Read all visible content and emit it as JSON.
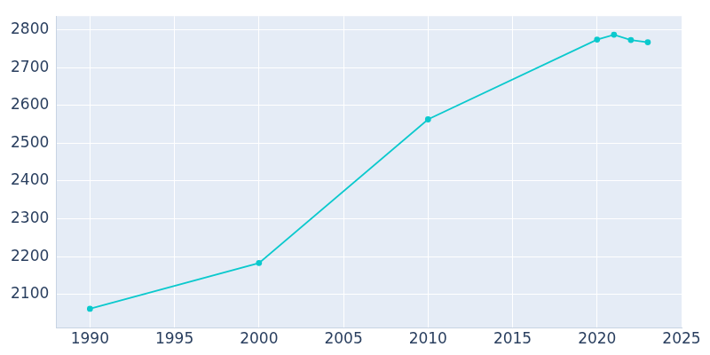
{
  "chart_data": {
    "type": "line",
    "x": [
      1990,
      2000,
      2010,
      2020,
      2021,
      2022,
      2023
    ],
    "values": [
      2062,
      2183,
      2563,
      2774,
      2787,
      2773,
      2767
    ],
    "color": "#0bc9cd",
    "marker": "circle",
    "xlim": [
      1988,
      2025
    ],
    "xticks": [
      1990,
      1995,
      2000,
      2005,
      2010,
      2015,
      2020,
      2025
    ],
    "ylim": [
      2011,
      2836
    ],
    "yticks": [
      2100,
      2200,
      2300,
      2400,
      2500,
      2600,
      2700,
      2800
    ],
    "grid": true
  }
}
